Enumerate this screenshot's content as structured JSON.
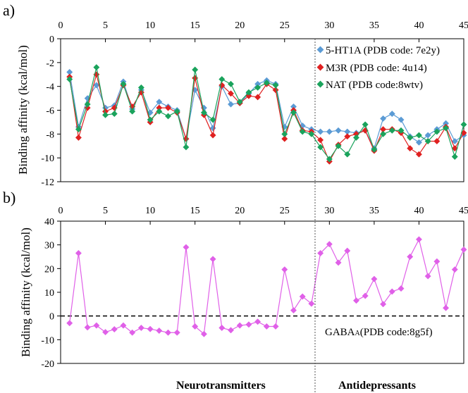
{
  "chart_data": [
    {
      "panel": "a)",
      "type": "line",
      "ylabel": "Binding affinity (kcal/mol)",
      "ylim": [
        -12,
        0
      ],
      "xlim": [
        0,
        45
      ],
      "x_ticks": [
        "0",
        "5",
        "10",
        "15",
        "20",
        "25",
        "30",
        "35",
        "40",
        "45"
      ],
      "y_ticks": [
        "0",
        "-2",
        "-4",
        "-6",
        "-8",
        "-10",
        "-12"
      ],
      "legend_position": "top-right",
      "x": [
        1,
        2,
        3,
        4,
        5,
        6,
        7,
        8,
        9,
        10,
        11,
        12,
        13,
        14,
        15,
        16,
        17,
        18,
        19,
        20,
        21,
        22,
        23,
        24,
        25,
        26,
        27,
        28,
        29,
        30,
        31,
        32,
        33,
        34,
        35,
        36,
        37,
        38,
        39,
        40,
        41,
        42,
        43,
        44,
        45
      ],
      "series": [
        {
          "name": "5-HT1A (PDB code: 7e2y)",
          "color": "#5b9bd5",
          "values": [
            -2.8,
            -7.4,
            -5.0,
            -3.9,
            -5.8,
            -5.6,
            -3.6,
            -5.9,
            -4.3,
            -6.2,
            -5.3,
            -5.7,
            -6.0,
            -8.4,
            -4.3,
            -5.8,
            -7.5,
            -4.0,
            -5.5,
            -5.4,
            -4.6,
            -3.8,
            -3.5,
            -3.8,
            -7.4,
            -5.7,
            -7.3,
            -7.6,
            -7.8,
            -7.8,
            -7.7,
            -7.8,
            -7.9,
            -7.7,
            -9.2,
            -6.7,
            -6.3,
            -6.8,
            -8.2,
            -8.7,
            -8.1,
            -7.6,
            -7.1,
            -8.6,
            -8.1
          ]
        },
        {
          "name": "M3R (PDB code: 4u14)",
          "color": "#e02020",
          "values": [
            -3.2,
            -8.3,
            -5.8,
            -3.0,
            -6.1,
            -5.8,
            -3.9,
            -5.7,
            -4.5,
            -7.0,
            -5.8,
            -5.8,
            -6.2,
            -8.4,
            -3.3,
            -6.4,
            -8.1,
            -3.9,
            -4.6,
            -5.4,
            -4.8,
            -4.9,
            -3.8,
            -4.3,
            -8.4,
            -6.0,
            -7.7,
            -7.8,
            -8.5,
            -10.3,
            -8.9,
            -8.2,
            -8.0,
            -7.7,
            -9.4,
            -7.6,
            -7.6,
            -7.9,
            -9.2,
            -9.7,
            -8.6,
            -8.6,
            -7.4,
            -9.2,
            -7.9
          ]
        },
        {
          "name": "NAT (PDB code:8wtv)",
          "color": "#1aa35c",
          "values": [
            -3.4,
            -7.6,
            -5.5,
            -2.4,
            -6.4,
            -6.3,
            -3.8,
            -6.1,
            -4.1,
            -6.8,
            -6.1,
            -6.5,
            -6.1,
            -9.1,
            -2.6,
            -6.2,
            -6.8,
            -3.4,
            -3.8,
            -5.3,
            -4.5,
            -4.1,
            -3.7,
            -3.9,
            -8.0,
            -6.2,
            -7.8,
            -8.0,
            -9.1,
            -10.1,
            -9.0,
            -9.7,
            -8.3,
            -7.2,
            -9.3,
            -8.0,
            -7.7,
            -7.7,
            -8.3,
            -8.1,
            -8.6,
            -7.8,
            -7.5,
            -9.9,
            -7.2
          ]
        }
      ]
    },
    {
      "panel": "b)",
      "type": "line",
      "ylabel": "Binding affinity (kcal/mol)",
      "ylim": [
        -20,
        40
      ],
      "xlim": [
        0,
        45
      ],
      "x_ticks": [
        "0",
        "5",
        "10",
        "15",
        "20",
        "25",
        "30",
        "35",
        "40",
        "45"
      ],
      "y_ticks": [
        "40",
        "30",
        "20",
        "10",
        "0",
        "-10",
        "-20"
      ],
      "reference_line": 0,
      "x": [
        1,
        2,
        3,
        4,
        5,
        6,
        7,
        8,
        9,
        10,
        11,
        12,
        13,
        14,
        15,
        16,
        17,
        18,
        19,
        20,
        21,
        22,
        23,
        24,
        25,
        26,
        27,
        28,
        29,
        30,
        31,
        32,
        33,
        34,
        35,
        36,
        37,
        38,
        39,
        40,
        41,
        42,
        43,
        44,
        45
      ],
      "series": [
        {
          "name": "GABAA (PDB code:8g5f)",
          "color": "#e060e8",
          "values": [
            -3.0,
            26.5,
            -4.8,
            -4.0,
            -6.8,
            -5.6,
            -4.0,
            -7.0,
            -5.0,
            -5.5,
            -6.2,
            -7.0,
            -7.0,
            29.0,
            -4.4,
            -7.6,
            24.0,
            -5.0,
            -6.0,
            -4.0,
            -3.6,
            -2.4,
            -4.4,
            -4.4,
            19.6,
            2.4,
            8.2,
            5.2,
            26.5,
            30.3,
            22.5,
            27.5,
            6.5,
            8.5,
            15.6,
            5.0,
            10.3,
            11.6,
            25.0,
            32.3,
            16.8,
            23.0,
            3.4,
            19.6,
            28.0
          ]
        }
      ],
      "annotation": {
        "prefix": "GABA",
        "subscript": "A",
        "suffix": "(PDB code:8g5f)"
      }
    }
  ],
  "divider_x": 28.4,
  "sections": {
    "left": "Neurotransmitters",
    "right": "Antidepressants"
  }
}
